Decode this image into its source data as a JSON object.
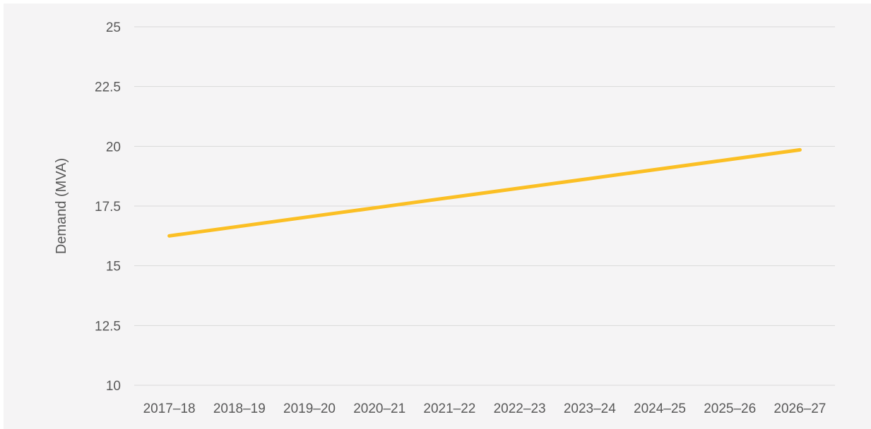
{
  "chart_data": {
    "type": "line",
    "title": "",
    "xlabel": "",
    "ylabel": "Demand (MVA)",
    "categories": [
      "2017–18",
      "2018–19",
      "2019–20",
      "2020–21",
      "2021–22",
      "2022–23",
      "2023–24",
      "2024–25",
      "2025–26",
      "2026–27"
    ],
    "yticks": [
      "10",
      "12.5",
      "15",
      "17.5",
      "20",
      "22.5",
      "25"
    ],
    "ylim": [
      10,
      25
    ],
    "grid": true,
    "legend": "none",
    "series": [
      {
        "values": [
          16.25,
          16.65,
          17.05,
          17.45,
          17.85,
          18.25,
          18.65,
          19.05,
          19.45,
          19.85
        ],
        "color": "#fbbf24"
      }
    ],
    "gridline_color": "#d9d9d9",
    "background": "#f5f4f5"
  }
}
